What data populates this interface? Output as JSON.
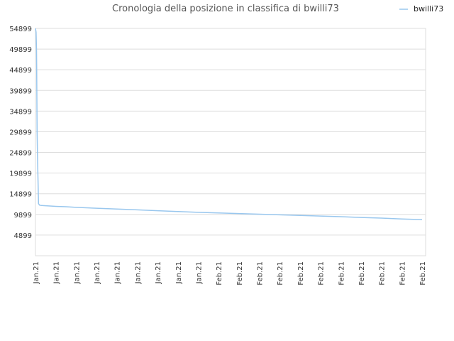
{
  "chart_data": {
    "type": "line",
    "title": "Cronologia della posizione in classifica di bwilli73",
    "xlabel": "",
    "ylabel": "",
    "y_reversed": true,
    "ylim": [
      54899,
      -101
    ],
    "y_ticks": [
      "4899",
      "9899",
      "14899",
      "19899",
      "24899",
      "29899",
      "34899",
      "39899",
      "44899",
      "49899",
      "54899"
    ],
    "x_ticks": [
      "Jan.21",
      "Jan.21",
      "Jan.21",
      "Jan.21",
      "Jan.21",
      "Jan.21",
      "Jan.21",
      "Jan.21",
      "Jan.21",
      "Feb.21",
      "Feb.21",
      "Feb.21",
      "Feb.21",
      "Feb.21",
      "Feb.21",
      "Feb.21",
      "Feb.21",
      "Feb.21",
      "Feb.21",
      "Feb.21"
    ],
    "grid": true,
    "legend_position": "top-right",
    "series": [
      {
        "name": "bwilli73",
        "color": "#99c7ee",
        "x": [
          0.0,
          0.03,
          0.05,
          0.06,
          0.08,
          0.1,
          0.15,
          0.2,
          0.3,
          0.5,
          0.8,
          1.0,
          1.5,
          2.0,
          3.0,
          4.0,
          5.0,
          6.0,
          7.0,
          8.0,
          9.0,
          10.0,
          11.0,
          12.0,
          13.0,
          14.0,
          15.0,
          16.0,
          17.0,
          18.0,
          19.0
        ],
        "y": [
          54899,
          54000,
          50000,
          45000,
          30000,
          24000,
          12500,
          12150,
          12050,
          12000,
          11900,
          11850,
          11750,
          11600,
          11400,
          11200,
          11000,
          10800,
          10600,
          10400,
          10250,
          10100,
          9950,
          9800,
          9650,
          9500,
          9350,
          9150,
          9000,
          8800,
          8650
        ]
      }
    ]
  }
}
